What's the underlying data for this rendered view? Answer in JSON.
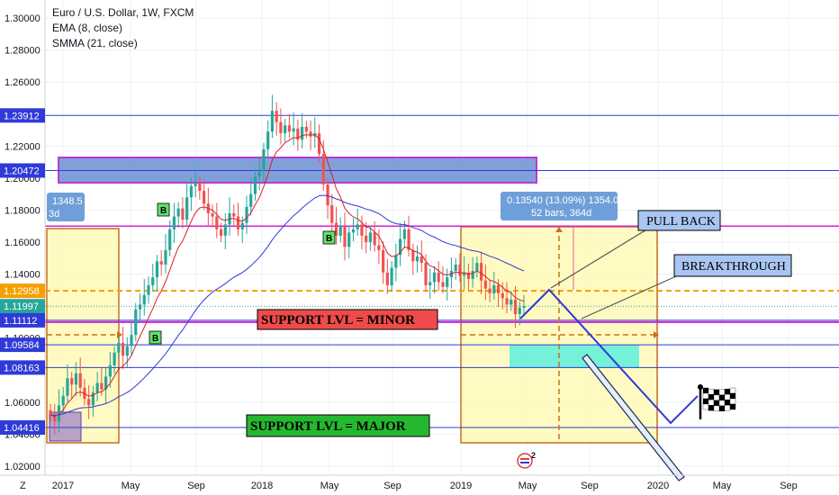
{
  "header": {
    "symbol_line": "Euro / U.S. Dollar, 1W, FXCM",
    "indicator_1": "EMA (8, close)",
    "indicator_2": "SMMA (21, close)"
  },
  "chart_data": {
    "type": "candlestick",
    "title": "Euro / U.S. Dollar, 1W, FXCM",
    "ylim": [
      1.01,
      1.3
    ],
    "x_ticks": [
      "2017",
      "May",
      "Sep",
      "2018",
      "May",
      "Sep",
      "2019",
      "May",
      "Sep",
      "2020",
      "May",
      "Sep"
    ],
    "y_ticks": [
      "1.30000",
      "1.28000",
      "1.26000",
      "1.22000",
      "1.20000",
      "1.18000",
      "1.16000",
      "1.14000",
      "1.10000",
      "1.06000",
      "1.04000",
      "1.02000"
    ],
    "grid": true,
    "price_tags": [
      {
        "label": "1.23912",
        "value": 1.23912,
        "color": "#2f3ad8"
      },
      {
        "label": "1.20472",
        "value": 1.20472,
        "color": "#2f3ad8"
      },
      {
        "label": "1.12958",
        "value": 1.12958,
        "color": "#f59f00"
      },
      {
        "label": "1.11997",
        "value": 1.11997,
        "color": "#26a69a"
      },
      {
        "label": "1.11112",
        "value": 1.11112,
        "color": "#2f3ad8"
      },
      {
        "label": "1.09584",
        "value": 1.09584,
        "color": "#2f3ad8"
      },
      {
        "label": "1.08163",
        "value": 1.08163,
        "color": "#2f3ad8"
      },
      {
        "label": "1.04416",
        "value": 1.04416,
        "color": "#2f3ad8"
      }
    ],
    "support_lines": [
      1.23912,
      1.20472,
      1.11112,
      1.09584,
      1.08163,
      1.04416
    ],
    "magenta_lines": [
      1.17,
      1.11
    ],
    "candles_weekly_close": [
      1.052,
      1.048,
      1.058,
      1.064,
      1.075,
      1.071,
      1.078,
      1.069,
      1.062,
      1.058,
      1.066,
      1.072,
      1.068,
      1.076,
      1.083,
      1.091,
      1.097,
      1.089,
      1.095,
      1.102,
      1.118,
      1.121,
      1.127,
      1.133,
      1.138,
      1.148,
      1.146,
      1.155,
      1.168,
      1.176,
      1.181,
      1.174,
      1.188,
      1.195,
      1.197,
      1.192,
      1.184,
      1.178,
      1.176,
      1.168,
      1.164,
      1.171,
      1.178,
      1.176,
      1.168,
      1.172,
      1.182,
      1.19,
      1.201,
      1.204,
      1.218,
      1.229,
      1.242,
      1.235,
      1.228,
      1.233,
      1.229,
      1.231,
      1.224,
      1.232,
      1.229,
      1.226,
      1.228,
      1.215,
      1.196,
      1.183,
      1.172,
      1.164,
      1.17,
      1.157,
      1.166,
      1.168,
      1.171,
      1.164,
      1.16,
      1.166,
      1.158,
      1.155,
      1.141,
      1.133,
      1.144,
      1.152,
      1.162,
      1.168,
      1.155,
      1.148,
      1.151,
      1.147,
      1.133,
      1.135,
      1.141,
      1.135,
      1.132,
      1.138,
      1.142,
      1.146,
      1.139,
      1.141,
      1.137,
      1.142,
      1.147,
      1.136,
      1.131,
      1.128,
      1.133,
      1.128,
      1.125,
      1.121,
      1.124,
      1.115,
      1.119,
      1.12
    ],
    "ema_8_label": "EMA (8, close)",
    "smma_21_label": "SMMA (21, close)",
    "measure_left": {
      "line1": "1348.5",
      "line2": "3d"
    },
    "measure_right": {
      "line1": "0.13540 (13.09%) 1354.0",
      "line2": "52 bars, 364d"
    },
    "annotations": {
      "support_minor": "SUPPORT LVL = MINOR",
      "support_major": "SUPPORT LVL = MAJOR",
      "pull_back": "PULL BACK",
      "breakthrough": "BREAKTHROUGH",
      "buy_marker": "B",
      "corner_badge": "2",
      "axis_corner": "Z"
    },
    "projection_path": [
      {
        "x": "2019-05",
        "y": 1.111
      },
      {
        "x": "2019-07",
        "y": 1.128
      },
      {
        "x": "2019-12",
        "y": 1.043
      },
      {
        "x": "2020-01",
        "y": 1.06
      }
    ]
  },
  "colors": {
    "up": "#26a69a",
    "down": "#ef5350",
    "ema": "#d5222a",
    "smma": "#2f3ad8",
    "support": "#2f3ad8",
    "magenta": "#d420d4",
    "orange": "#f59f00",
    "box_fill": "#fff9b7",
    "box_border": "#c9701a",
    "teal_zone": "#5cefd9",
    "blue_zone": "#6b8fd4"
  }
}
